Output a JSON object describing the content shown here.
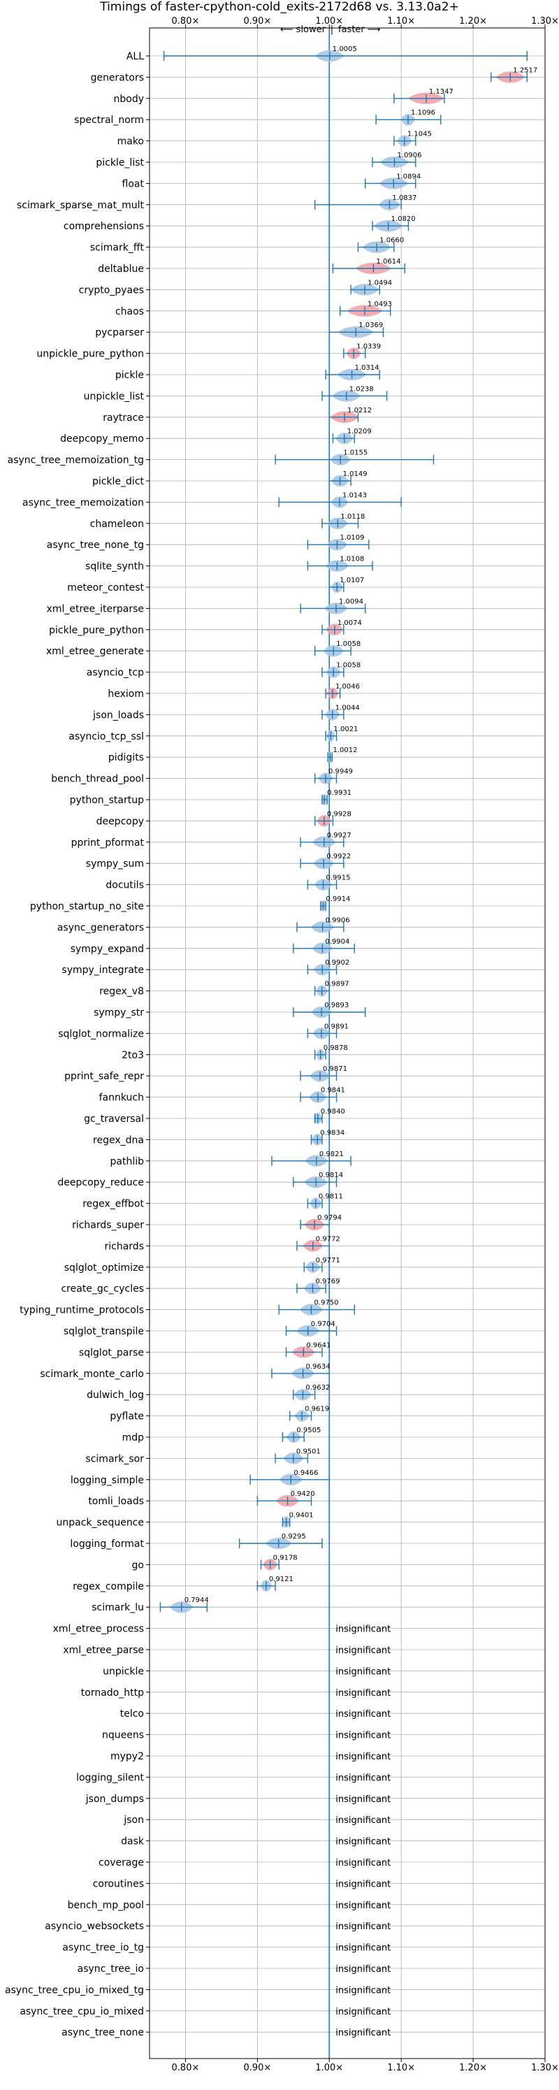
{
  "chart_data": {
    "type": "violin",
    "title": "Timings of faster-cpython-cold_exits-2172d68 vs. 3.13.0a2+",
    "direction_slower": "⟵ slower",
    "direction_faster": "faster ⟶",
    "direction_separator": "|",
    "x_range": [
      0.75,
      1.3
    ],
    "x_ticks": [
      0.8,
      0.9,
      1.0,
      1.1,
      1.2,
      1.3
    ],
    "x_tick_labels": [
      "0.80×",
      "0.90×",
      "1.00×",
      "1.10×",
      "1.20×",
      "1.30×"
    ],
    "insignificant_label": "insignificant",
    "colors": {
      "blue": "#1f77b4",
      "violin_blue": "#a9c8e3",
      "violin_red": "#f2a4a8",
      "grid": "#b0b0b0"
    },
    "benchmarks": [
      {
        "name": "ALL",
        "value": 1.0005,
        "label": "1.0005",
        "min": 0.77,
        "max": 1.275,
        "width": 0.02,
        "red": false
      },
      {
        "name": "generators",
        "value": 1.2517,
        "label": "1.2517",
        "min": 1.225,
        "max": 1.275,
        "width": 0.02,
        "red": true
      },
      {
        "name": "nbody",
        "value": 1.1347,
        "label": "1.1347",
        "min": 1.09,
        "max": 1.16,
        "width": 0.025,
        "red": true
      },
      {
        "name": "spectral_norm",
        "value": 1.1096,
        "label": "1.1096",
        "min": 1.065,
        "max": 1.155,
        "width": 0.01,
        "red": false
      },
      {
        "name": "mako",
        "value": 1.1045,
        "label": "1.1045",
        "min": 1.09,
        "max": 1.12,
        "width": 0.01,
        "red": false
      },
      {
        "name": "pickle_list",
        "value": 1.0906,
        "label": "1.0906",
        "min": 1.06,
        "max": 1.12,
        "width": 0.02,
        "red": false
      },
      {
        "name": "float",
        "value": 1.0894,
        "label": "1.0894",
        "min": 1.05,
        "max": 1.12,
        "width": 0.02,
        "red": false
      },
      {
        "name": "scimark_sparse_mat_mult",
        "value": 1.0837,
        "label": "1.0837",
        "min": 0.98,
        "max": 1.1,
        "width": 0.015,
        "red": false
      },
      {
        "name": "comprehensions",
        "value": 1.082,
        "label": "1.0820",
        "min": 1.06,
        "max": 1.11,
        "width": 0.02,
        "red": false
      },
      {
        "name": "scimark_fft",
        "value": 1.066,
        "label": "1.0660",
        "min": 1.04,
        "max": 1.09,
        "width": 0.02,
        "red": false
      },
      {
        "name": "deltablue",
        "value": 1.0614,
        "label": "1.0614",
        "min": 1.005,
        "max": 1.105,
        "width": 0.025,
        "red": true
      },
      {
        "name": "crypto_pyaes",
        "value": 1.0494,
        "label": "1.0494",
        "min": 1.03,
        "max": 1.07,
        "width": 0.02,
        "red": false
      },
      {
        "name": "chaos",
        "value": 1.0493,
        "label": "1.0493",
        "min": 1.015,
        "max": 1.085,
        "width": 0.025,
        "red": true
      },
      {
        "name": "pycparser",
        "value": 1.0369,
        "label": "1.0369",
        "min": 1.0,
        "max": 1.075,
        "width": 0.025,
        "red": false
      },
      {
        "name": "unpickle_pure_python",
        "value": 1.0339,
        "label": "1.0339",
        "min": 1.02,
        "max": 1.05,
        "width": 0.01,
        "red": true
      },
      {
        "name": "pickle",
        "value": 1.0314,
        "label": "1.0314",
        "min": 0.995,
        "max": 1.07,
        "width": 0.02,
        "red": false
      },
      {
        "name": "unpickle_list",
        "value": 1.0238,
        "label": "1.0238",
        "min": 0.99,
        "max": 1.08,
        "width": 0.02,
        "red": false
      },
      {
        "name": "raytrace",
        "value": 1.0212,
        "label": "1.0212",
        "min": 1.0,
        "max": 1.04,
        "width": 0.02,
        "red": true
      },
      {
        "name": "deepcopy_memo",
        "value": 1.0209,
        "label": "1.0209",
        "min": 1.005,
        "max": 1.035,
        "width": 0.012,
        "red": false
      },
      {
        "name": "async_tree_memoization_tg",
        "value": 1.0155,
        "label": "1.0155",
        "min": 0.925,
        "max": 1.145,
        "width": 0.014,
        "red": false
      },
      {
        "name": "pickle_dict",
        "value": 1.0149,
        "label": "1.0149",
        "min": 1.0,
        "max": 1.03,
        "width": 0.012,
        "red": false
      },
      {
        "name": "async_tree_memoization",
        "value": 1.0143,
        "label": "1.0143",
        "min": 0.93,
        "max": 1.1,
        "width": 0.012,
        "red": false
      },
      {
        "name": "chameleon",
        "value": 1.0118,
        "label": "1.0118",
        "min": 0.99,
        "max": 1.04,
        "width": 0.014,
        "red": false
      },
      {
        "name": "async_tree_none_tg",
        "value": 1.0109,
        "label": "1.0109",
        "min": 0.97,
        "max": 1.055,
        "width": 0.014,
        "red": false
      },
      {
        "name": "sqlite_synth",
        "value": 1.0108,
        "label": "1.0108",
        "min": 0.97,
        "max": 1.06,
        "width": 0.016,
        "red": false
      },
      {
        "name": "meteor_contest",
        "value": 1.0107,
        "label": "1.0107",
        "min": 1.0,
        "max": 1.02,
        "width": 0.008,
        "red": false
      },
      {
        "name": "xml_etree_iterparse",
        "value": 1.0094,
        "label": "1.0094",
        "min": 0.96,
        "max": 1.05,
        "width": 0.016,
        "red": false
      },
      {
        "name": "pickle_pure_python",
        "value": 1.0074,
        "label": "1.0074",
        "min": 0.99,
        "max": 1.02,
        "width": 0.012,
        "red": true
      },
      {
        "name": "xml_etree_generate",
        "value": 1.0058,
        "label": "1.0058",
        "min": 0.98,
        "max": 1.03,
        "width": 0.014,
        "red": false
      },
      {
        "name": "asyncio_tcp",
        "value": 1.0058,
        "label": "1.0058",
        "min": 0.99,
        "max": 1.02,
        "width": 0.01,
        "red": false
      },
      {
        "name": "hexiom",
        "value": 1.0046,
        "label": "1.0046",
        "min": 0.995,
        "max": 1.015,
        "width": 0.008,
        "red": true
      },
      {
        "name": "json_loads",
        "value": 1.0044,
        "label": "1.0044",
        "min": 0.99,
        "max": 1.02,
        "width": 0.01,
        "red": false
      },
      {
        "name": "asyncio_tcp_ssl",
        "value": 1.0021,
        "label": "1.0021",
        "min": 0.995,
        "max": 1.01,
        "width": 0.006,
        "red": false
      },
      {
        "name": "pidigits",
        "value": 1.0012,
        "label": "1.0012",
        "min": 0.998,
        "max": 1.004,
        "width": 0.003,
        "red": false
      },
      {
        "name": "bench_thread_pool",
        "value": 0.9949,
        "label": "0.9949",
        "min": 0.98,
        "max": 1.01,
        "width": 0.01,
        "red": false
      },
      {
        "name": "python_startup",
        "value": 0.9931,
        "label": "0.9931",
        "min": 0.99,
        "max": 0.997,
        "width": 0.004,
        "red": false
      },
      {
        "name": "deepcopy",
        "value": 0.9928,
        "label": "0.9928",
        "min": 0.98,
        "max": 1.005,
        "width": 0.01,
        "red": true
      },
      {
        "name": "pprint_pformat",
        "value": 0.9927,
        "label": "0.9927",
        "min": 0.96,
        "max": 1.02,
        "width": 0.016,
        "red": false
      },
      {
        "name": "sympy_sum",
        "value": 0.9922,
        "label": "0.9922",
        "min": 0.96,
        "max": 1.02,
        "width": 0.014,
        "red": false
      },
      {
        "name": "docutils",
        "value": 0.9915,
        "label": "0.9915",
        "min": 0.97,
        "max": 1.01,
        "width": 0.012,
        "red": false
      },
      {
        "name": "python_startup_no_site",
        "value": 0.9914,
        "label": "0.9914",
        "min": 0.988,
        "max": 0.995,
        "width": 0.004,
        "red": false
      },
      {
        "name": "async_generators",
        "value": 0.9906,
        "label": "0.9906",
        "min": 0.955,
        "max": 1.02,
        "width": 0.016,
        "red": false
      },
      {
        "name": "sympy_expand",
        "value": 0.9904,
        "label": "0.9904",
        "min": 0.95,
        "max": 1.035,
        "width": 0.014,
        "red": false
      },
      {
        "name": "sympy_integrate",
        "value": 0.9902,
        "label": "0.9902",
        "min": 0.97,
        "max": 1.01,
        "width": 0.012,
        "red": false
      },
      {
        "name": "regex_v8",
        "value": 0.9897,
        "label": "0.9897",
        "min": 0.98,
        "max": 1.0,
        "width": 0.008,
        "red": false
      },
      {
        "name": "sympy_str",
        "value": 0.9893,
        "label": "0.9893",
        "min": 0.95,
        "max": 1.05,
        "width": 0.014,
        "red": false
      },
      {
        "name": "sqlglot_normalize",
        "value": 0.9891,
        "label": "0.9891",
        "min": 0.97,
        "max": 1.01,
        "width": 0.012,
        "red": false
      },
      {
        "name": "2to3",
        "value": 0.9878,
        "label": "0.9878",
        "min": 0.98,
        "max": 0.995,
        "width": 0.006,
        "red": false
      },
      {
        "name": "pprint_safe_repr",
        "value": 0.9871,
        "label": "0.9871",
        "min": 0.96,
        "max": 1.01,
        "width": 0.014,
        "red": false
      },
      {
        "name": "fannkuch",
        "value": 0.9841,
        "label": "0.9841",
        "min": 0.96,
        "max": 1.01,
        "width": 0.012,
        "red": false
      },
      {
        "name": "gc_traversal",
        "value": 0.984,
        "label": "0.9840",
        "min": 0.98,
        "max": 0.99,
        "width": 0.006,
        "red": false
      },
      {
        "name": "regex_dna",
        "value": 0.9834,
        "label": "0.9834",
        "min": 0.975,
        "max": 0.99,
        "width": 0.008,
        "red": false
      },
      {
        "name": "pathlib",
        "value": 0.9821,
        "label": "0.9821",
        "min": 0.92,
        "max": 1.03,
        "width": 0.016,
        "red": false
      },
      {
        "name": "deepcopy_reduce",
        "value": 0.9814,
        "label": "0.9814",
        "min": 0.95,
        "max": 1.01,
        "width": 0.016,
        "red": false
      },
      {
        "name": "regex_effbot",
        "value": 0.9811,
        "label": "0.9811",
        "min": 0.97,
        "max": 0.99,
        "width": 0.008,
        "red": false
      },
      {
        "name": "richards_super",
        "value": 0.9794,
        "label": "0.9794",
        "min": 0.96,
        "max": 1.0,
        "width": 0.014,
        "red": true
      },
      {
        "name": "richards",
        "value": 0.9772,
        "label": "0.9772",
        "min": 0.955,
        "max": 1.0,
        "width": 0.014,
        "red": true
      },
      {
        "name": "sqlglot_optimize",
        "value": 0.9771,
        "label": "0.9771",
        "min": 0.965,
        "max": 0.99,
        "width": 0.01,
        "red": false
      },
      {
        "name": "create_gc_cycles",
        "value": 0.9769,
        "label": "0.9769",
        "min": 0.955,
        "max": 0.995,
        "width": 0.012,
        "red": false
      },
      {
        "name": "typing_runtime_protocols",
        "value": 0.975,
        "label": "0.9750",
        "min": 0.93,
        "max": 1.035,
        "width": 0.016,
        "red": false
      },
      {
        "name": "sqlglot_transpile",
        "value": 0.9704,
        "label": "0.9704",
        "min": 0.94,
        "max": 1.01,
        "width": 0.016,
        "red": false
      },
      {
        "name": "sqlglot_parse",
        "value": 0.9641,
        "label": "0.9641",
        "min": 0.94,
        "max": 0.99,
        "width": 0.016,
        "red": true
      },
      {
        "name": "scimark_monte_carlo",
        "value": 0.9634,
        "label": "0.9634",
        "min": 0.92,
        "max": 1.0,
        "width": 0.016,
        "red": false
      },
      {
        "name": "dulwich_log",
        "value": 0.9632,
        "label": "0.9632",
        "min": 0.95,
        "max": 0.98,
        "width": 0.012,
        "red": false
      },
      {
        "name": "pyflate",
        "value": 0.9619,
        "label": "0.9619",
        "min": 0.945,
        "max": 0.975,
        "width": 0.01,
        "red": false
      },
      {
        "name": "mdp",
        "value": 0.9505,
        "label": "0.9505",
        "min": 0.935,
        "max": 0.965,
        "width": 0.01,
        "red": false
      },
      {
        "name": "scimark_sor",
        "value": 0.9501,
        "label": "0.9501",
        "min": 0.925,
        "max": 0.97,
        "width": 0.014,
        "red": false
      },
      {
        "name": "logging_simple",
        "value": 0.9466,
        "label": "0.9466",
        "min": 0.89,
        "max": 1.0,
        "width": 0.016,
        "red": false
      },
      {
        "name": "tomli_loads",
        "value": 0.942,
        "label": "0.9420",
        "min": 0.9,
        "max": 0.975,
        "width": 0.016,
        "red": true
      },
      {
        "name": "unpack_sequence",
        "value": 0.9401,
        "label": "0.9401",
        "min": 0.935,
        "max": 0.945,
        "width": 0.006,
        "red": false
      },
      {
        "name": "logging_format",
        "value": 0.9295,
        "label": "0.9295",
        "min": 0.875,
        "max": 0.99,
        "width": 0.018,
        "red": false
      },
      {
        "name": "go",
        "value": 0.9178,
        "label": "0.9178",
        "min": 0.905,
        "max": 0.93,
        "width": 0.01,
        "red": true
      },
      {
        "name": "regex_compile",
        "value": 0.9121,
        "label": "0.9121",
        "min": 0.9,
        "max": 0.925,
        "width": 0.008,
        "red": false
      },
      {
        "name": "scimark_lu",
        "value": 0.7944,
        "label": "0.7944",
        "min": 0.765,
        "max": 0.83,
        "width": 0.016,
        "red": false
      },
      {
        "name": "xml_etree_process",
        "insignificant": true
      },
      {
        "name": "xml_etree_parse",
        "insignificant": true
      },
      {
        "name": "unpickle",
        "insignificant": true
      },
      {
        "name": "tornado_http",
        "insignificant": true
      },
      {
        "name": "telco",
        "insignificant": true
      },
      {
        "name": "nqueens",
        "insignificant": true
      },
      {
        "name": "mypy2",
        "insignificant": true
      },
      {
        "name": "logging_silent",
        "insignificant": true
      },
      {
        "name": "json_dumps",
        "insignificant": true
      },
      {
        "name": "json",
        "insignificant": true
      },
      {
        "name": "dask",
        "insignificant": true
      },
      {
        "name": "coverage",
        "insignificant": true
      },
      {
        "name": "coroutines",
        "insignificant": true
      },
      {
        "name": "bench_mp_pool",
        "insignificant": true
      },
      {
        "name": "asyncio_websockets",
        "insignificant": true
      },
      {
        "name": "async_tree_io_tg",
        "insignificant": true
      },
      {
        "name": "async_tree_io",
        "insignificant": true
      },
      {
        "name": "async_tree_cpu_io_mixed_tg",
        "insignificant": true
      },
      {
        "name": "async_tree_cpu_io_mixed",
        "insignificant": true
      },
      {
        "name": "async_tree_none",
        "insignificant": true
      }
    ]
  }
}
